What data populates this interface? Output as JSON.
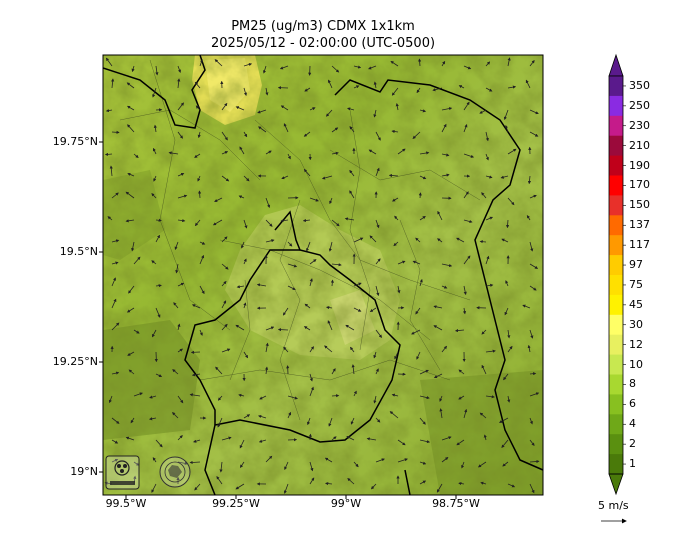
{
  "map": {
    "title_line1": "PM25 (ug/m3) CDMX 1x1km",
    "title_line2": "2025/05/12 - 02:00:00 (UTC-0500)",
    "lat_labels": [
      "19.75°N",
      "19.5°N",
      "19.25°N",
      "19°N"
    ],
    "lon_labels": [
      "99.5°W",
      "99.25°W",
      "99°W",
      "98.75°W"
    ],
    "logo_text": [
      "SEDEMA"
    ]
  },
  "colorbar": {
    "levels": [
      "350",
      "250",
      "230",
      "210",
      "190",
      "170",
      "150",
      "137",
      "117",
      "97",
      "75",
      "45",
      "30",
      "12",
      "10",
      "8",
      "6",
      "4",
      "2",
      "1"
    ],
    "colors": [
      "#5a1a8c",
      "#8a2be2",
      "#c51b8a",
      "#9b0a3b",
      "#c0001a",
      "#ff0000",
      "#e8302a",
      "#ff6a00",
      "#ff9900",
      "#ffcc00",
      "#ffe000",
      "#fff200",
      "#ffff66",
      "#e8f060",
      "#c8e850",
      "#a8d830",
      "#88c020",
      "#6fa818",
      "#5a9010",
      "#4a7a0a"
    ],
    "vector_unit": "5 m/s"
  },
  "chart_data": {
    "type": "heatmap",
    "variable": "PM25 (ug/m3)",
    "domain": "CDMX 1x1km",
    "datetime": "2025/05/12 - 02:00:00 (UTC-0500)",
    "lat_ticks": [
      19.75,
      19.5,
      19.25,
      19.0
    ],
    "lon_ticks": [
      -99.5,
      -99.25,
      -99.0,
      -98.75
    ],
    "color_levels": [
      1,
      2,
      4,
      6,
      8,
      10,
      12,
      30,
      45,
      75,
      97,
      117,
      137,
      150,
      170,
      190,
      210,
      230,
      250,
      350
    ]
  }
}
